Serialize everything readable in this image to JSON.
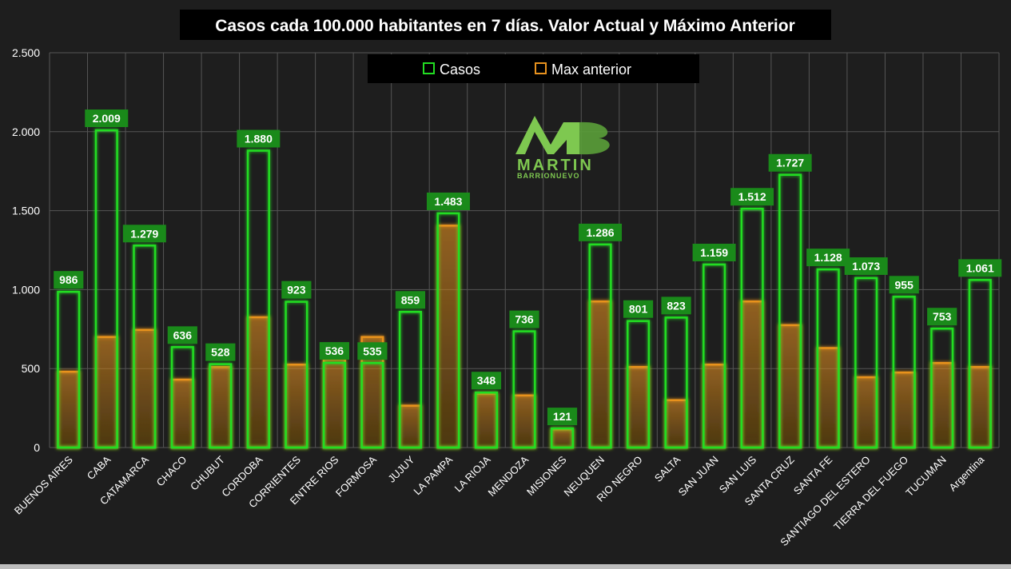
{
  "colors": {
    "background": "#1e1e1e",
    "casos": "#22dd22",
    "max_anterior": "#e8921e",
    "label_bg": "#1a8a1a",
    "logo": "#7ec850"
  },
  "logo": {
    "name": "MARTIN",
    "subname": "BARRIONUEVO"
  },
  "chart_data": {
    "type": "bar",
    "title": "Casos cada 100.000 habitantes en 7 días. Valor Actual y Máximo Anterior",
    "xlabel": "",
    "ylabel": "",
    "ylim": [
      0,
      2500
    ],
    "yticks": [
      0,
      500,
      1000,
      1500,
      2000,
      2500
    ],
    "ytick_labels": [
      "0",
      "500",
      "1.000",
      "1.500",
      "2.000",
      "2.500"
    ],
    "grid": true,
    "legend_position": "top-center",
    "categories": [
      "BUENOS AIRES",
      "CABA",
      "CATAMARCA",
      "CHACO",
      "CHUBUT",
      "CORDOBA",
      "CORRIENTES",
      "ENTRE RIOS",
      "FORMOSA",
      "JUJUY",
      "LA PAMPA",
      "LA RIOJA",
      "MENDOZA",
      "MISIONES",
      "NEUQUEN",
      "RIO NEGRO",
      "SALTA",
      "SAN JUAN",
      "SAN LUIS",
      "SANTA CRUZ",
      "SANTA FE",
      "SANTIAGO DEL ESTERO",
      "TIERRA DEL FUEGO",
      "TUCUMAN",
      "Argentina"
    ],
    "series": [
      {
        "name": "Casos",
        "values": [
          986,
          2009,
          1279,
          636,
          528,
          1880,
          923,
          536,
          535,
          859,
          1483,
          348,
          736,
          121,
          1286,
          801,
          823,
          1159,
          1512,
          1727,
          1128,
          1073,
          955,
          753,
          1061
        ],
        "data_labels": [
          "986",
          "2.009",
          "1.279",
          "636",
          "528",
          "1.880",
          "923",
          "536",
          "535",
          "859",
          "1.483",
          "348",
          "736",
          "121",
          "1.286",
          "801",
          "823",
          "1.159",
          "1.512",
          "1.727",
          "1.128",
          "1.073",
          "955",
          "753",
          "1.061"
        ]
      },
      {
        "name": "Max anterior",
        "values": [
          480,
          700,
          745,
          430,
          510,
          825,
          525,
          560,
          700,
          265,
          1405,
          340,
          330,
          115,
          925,
          510,
          300,
          525,
          925,
          775,
          630,
          445,
          475,
          535,
          510
        ]
      }
    ]
  }
}
